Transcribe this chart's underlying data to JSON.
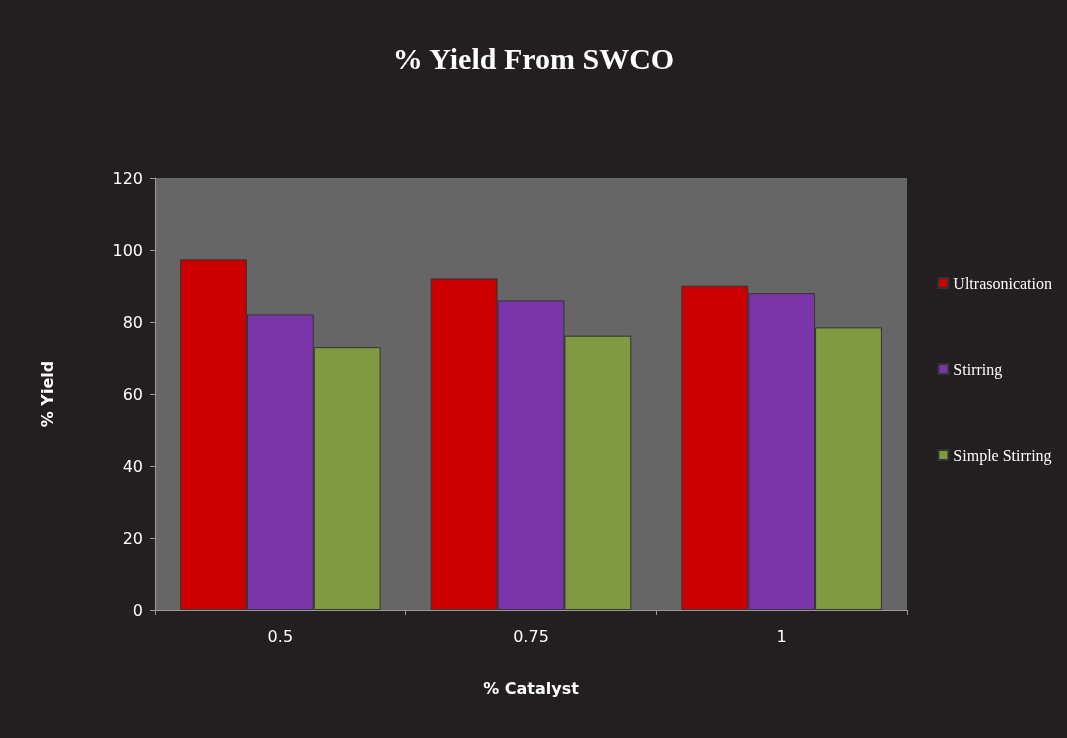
{
  "chart_data": {
    "type": "bar",
    "title": "% Yield From SWCO",
    "xlabel": "% Catalyst",
    "ylabel": "% Yield",
    "categories": [
      "0.5",
      "0.75",
      "1"
    ],
    "series": [
      {
        "name": "Ultrasonication",
        "color": "#cc0000",
        "values": [
          97.4,
          92.1,
          90.1
        ]
      },
      {
        "name": "Stirring",
        "color": "#7b35a8",
        "values": [
          82.1,
          86,
          88
        ]
      },
      {
        "name": "Simple Stirring",
        "color": "#7f9a40",
        "values": [
          73,
          76.2,
          78.5
        ]
      }
    ],
    "ylim": [
      0,
      120
    ],
    "yticks": [
      0,
      20,
      40,
      60,
      80,
      100,
      120
    ],
    "grid": false,
    "legend": "right"
  }
}
